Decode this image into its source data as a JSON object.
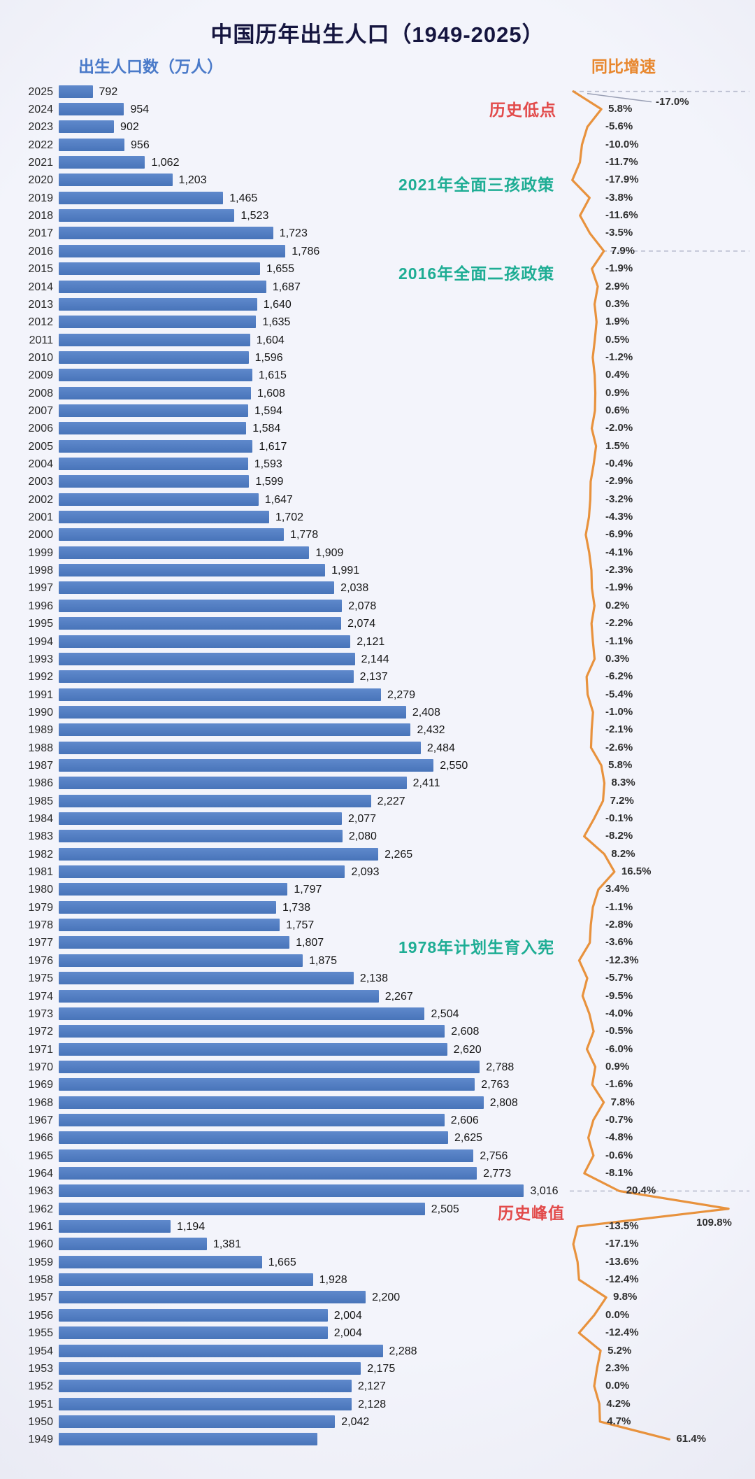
{
  "title": "中国历年出生人口（1949-2025）",
  "left_axis_label": "出生人口数（万人）",
  "right_axis_label": "同比增速",
  "annotations": {
    "historic_low": "历史低点",
    "policy_2021": "2021年全面三孩政策",
    "policy_2016": "2016年全面二孩政策",
    "policy_1978": "1978年计划生育入宪",
    "historic_peak": "历史峰值"
  },
  "colors": {
    "bar_blue": "#4d7cc0",
    "line_orange": "#e8923d",
    "annotation_red": "#e24a4a",
    "annotation_teal": "#1ead94",
    "title_navy": "#15153f",
    "background": "#eef0f8"
  },
  "chart_data": {
    "type": "bar",
    "orientation": "horizontal",
    "title": "中国历年出生人口（1949-2025）",
    "categories": [
      2025,
      2024,
      2023,
      2022,
      2021,
      2020,
      2019,
      2018,
      2017,
      2016,
      2015,
      2014,
      2013,
      2012,
      2011,
      2010,
      2009,
      2008,
      2007,
      2006,
      2005,
      2004,
      2003,
      2002,
      2001,
      2000,
      1999,
      1998,
      1997,
      1996,
      1995,
      1994,
      1993,
      1992,
      1991,
      1990,
      1989,
      1988,
      1987,
      1986,
      1985,
      1984,
      1983,
      1982,
      1981,
      1980,
      1979,
      1978,
      1977,
      1976,
      1975,
      1974,
      1973,
      1972,
      1971,
      1970,
      1969,
      1968,
      1967,
      1966,
      1965,
      1964,
      1963,
      1962,
      1961,
      1960,
      1959,
      1958,
      1957,
      1956,
      1955,
      1954,
      1953,
      1952,
      1951,
      1950,
      1949
    ],
    "series": [
      {
        "name": "出生人口数（万人）",
        "type": "bar",
        "values": [
          792,
          954,
          902,
          956,
          1062,
          1203,
          1465,
          1523,
          1723,
          1786,
          1655,
          1687,
          1640,
          1635,
          1604,
          1596,
          1615,
          1608,
          1594,
          1584,
          1617,
          1593,
          1599,
          1647,
          1702,
          1778,
          1909,
          1991,
          2038,
          2078,
          2074,
          2121,
          2144,
          2137,
          2279,
          2408,
          2432,
          2484,
          2550,
          2411,
          2227,
          2077,
          2080,
          2265,
          2093,
          1797,
          1738,
          1757,
          1807,
          1875,
          2138,
          2267,
          2504,
          2608,
          2620,
          2788,
          2763,
          2808,
          2606,
          2625,
          2756,
          2773,
          3016,
          2505,
          1194,
          1381,
          1665,
          1928,
          2200,
          2004,
          2004,
          2288,
          2175,
          2127,
          2128,
          2042,
          1950
        ],
        "labels": [
          "792",
          "954",
          "902",
          "956",
          "1,062",
          "1,203",
          "1,465",
          "1,523",
          "1,723",
          "1,786",
          "1,655",
          "1,687",
          "1,640",
          "1,635",
          "1,604",
          "1,596",
          "1,615",
          "1,608",
          "1,594",
          "1,584",
          "1,617",
          "1,593",
          "1,599",
          "1,647",
          "1,702",
          "1,778",
          "1,909",
          "1,991",
          "2,038",
          "2,078",
          "2,074",
          "2,121",
          "2,144",
          "2,137",
          "2,279",
          "2,408",
          "2,432",
          "2,484",
          "2,550",
          "2,411",
          "2,227",
          "2,077",
          "2,080",
          "2,265",
          "2,093",
          "1,797",
          "1,738",
          "1,757",
          "1,807",
          "1,875",
          "2,138",
          "2,267",
          "2,504",
          "2,608",
          "2,620",
          "2,788",
          "2,763",
          "2,808",
          "2,606",
          "2,625",
          "2,756",
          "2,773",
          "3,016",
          "2,505",
          "1,194",
          "1,381",
          "1,665",
          "1,928",
          "2,200",
          "2,004",
          "2,004",
          "2,288",
          "2,175",
          "2,127",
          "2,128",
          "2,042",
          ""
        ]
      },
      {
        "name": "同比增速",
        "type": "line",
        "unit": "%",
        "values": [
          -17.0,
          5.8,
          -5.6,
          -10.0,
          -11.7,
          -17.9,
          -3.8,
          -11.6,
          -3.5,
          7.9,
          -1.9,
          2.9,
          0.3,
          1.9,
          0.5,
          -1.2,
          0.4,
          0.9,
          0.6,
          -2.0,
          1.5,
          -0.4,
          -2.9,
          -3.2,
          -4.3,
          -6.9,
          -4.1,
          -2.3,
          -1.9,
          0.2,
          -2.2,
          -1.1,
          0.3,
          -6.2,
          -5.4,
          -1.0,
          -2.1,
          -2.6,
          5.8,
          8.3,
          7.2,
          -0.1,
          -8.2,
          8.2,
          16.5,
          3.4,
          -1.1,
          -2.8,
          -3.6,
          -12.3,
          -5.7,
          -9.5,
          -4.0,
          -0.5,
          -6.0,
          0.9,
          -1.6,
          7.8,
          -0.7,
          -4.8,
          -0.6,
          -8.1,
          20.4,
          109.8,
          -13.5,
          -17.1,
          -13.6,
          -12.4,
          9.8,
          0.0,
          -12.4,
          5.2,
          2.3,
          0.0,
          4.2,
          4.7,
          61.4
        ],
        "labels": [
          "-17.0%",
          "5.8%",
          "-5.6%",
          "-10.0%",
          "-11.7%",
          "-17.9%",
          "-3.8%",
          "-11.6%",
          "-3.5%",
          "7.9%",
          "-1.9%",
          "2.9%",
          "0.3%",
          "1.9%",
          "0.5%",
          "-1.2%",
          "0.4%",
          "0.9%",
          "0.6%",
          "-2.0%",
          "1.5%",
          "-0.4%",
          "-2.9%",
          "-3.2%",
          "-4.3%",
          "-6.9%",
          "-4.1%",
          "-2.3%",
          "-1.9%",
          "0.2%",
          "-2.2%",
          "-1.1%",
          "0.3%",
          "-6.2%",
          "-5.4%",
          "-1.0%",
          "-2.1%",
          "-2.6%",
          "5.8%",
          "8.3%",
          "7.2%",
          "-0.1%",
          "-8.2%",
          "8.2%",
          "16.5%",
          "3.4%",
          "-1.1%",
          "-2.8%",
          "-3.6%",
          "-12.3%",
          "-5.7%",
          "-9.5%",
          "-4.0%",
          "-0.5%",
          "-6.0%",
          "0.9%",
          "-1.6%",
          "7.8%",
          "-0.7%",
          "-4.8%",
          "-0.6%",
          "-8.1%",
          "20.4%",
          "109.8%",
          "-13.5%",
          "-17.1%",
          "-13.6%",
          "-12.4%",
          "9.8%",
          "0.0%",
          "-12.4%",
          "5.2%",
          "2.3%",
          "0.0%",
          "4.2%",
          "4.7%",
          "61.4%"
        ]
      }
    ],
    "dashed_guides_at_years": [
      2025,
      2016,
      1963
    ],
    "annotated_years": {
      "historic_low": 2025,
      "policy_2021": 2020,
      "policy_2016": 2015,
      "policy_1978": 1977,
      "historic_peak": 1962
    }
  }
}
